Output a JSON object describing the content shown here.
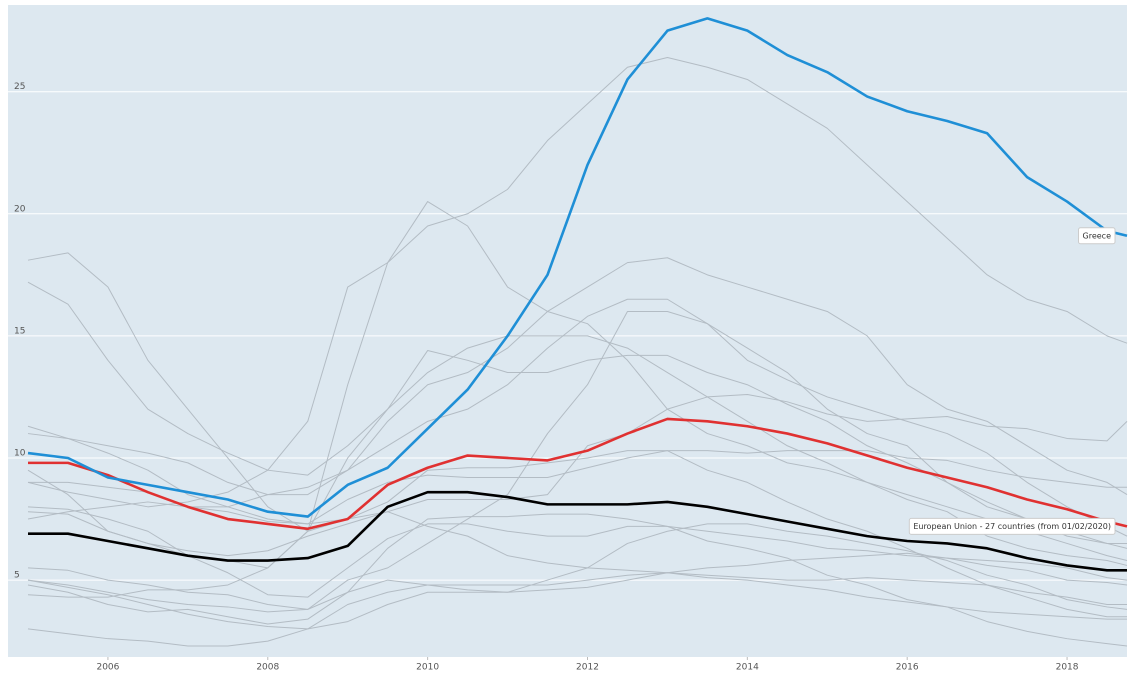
{
  "chart_data": {
    "type": "line",
    "x": [
      2005,
      2005.5,
      2006,
      2006.5,
      2007,
      2007.5,
      2008,
      2008.5,
      2009,
      2009.5,
      2010,
      2010.5,
      2011,
      2011.5,
      2012,
      2012.5,
      2013,
      2013.5,
      2014,
      2014.5,
      2015,
      2015.5,
      2016,
      2016.5,
      2017,
      2017.5,
      2018,
      2018.5,
      2018.75
    ],
    "xlim": [
      2005,
      2018.75
    ],
    "xticks": [
      2006,
      2008,
      2010,
      2012,
      2014,
      2016,
      2018
    ],
    "ylim": [
      1.85,
      28.55
    ],
    "yticks": [
      5,
      10,
      15,
      20,
      25
    ],
    "grid": true,
    "series": [
      {
        "color": "#b3bcc4",
        "values": [
          9.0,
          8.6,
          8.3,
          8.0,
          8.2,
          8.6,
          9.5,
          11.5,
          17.0,
          18.0,
          19.5,
          20.0,
          21.0,
          23.0,
          24.5,
          26.0,
          26.4,
          26.0,
          25.5,
          24.5,
          23.5,
          22.0,
          20.5,
          19.0,
          17.5,
          16.5,
          16.0,
          15.0,
          14.7
        ]
      },
      {
        "color": "#b3bcc4",
        "values": [
          9.5,
          8.5,
          7.0,
          6.5,
          6.0,
          5.8,
          5.5,
          7.0,
          13.0,
          18.0,
          20.5,
          19.5,
          17.0,
          16.0,
          15.5,
          14.0,
          12.0,
          11.0,
          10.5,
          9.8,
          9.5,
          9.0,
          8.5,
          8.0,
          7.5,
          7.0,
          6.5,
          6.0,
          5.8
        ]
      },
      {
        "color": "#b3bcc4",
        "values": [
          18.1,
          18.4,
          17.0,
          14.0,
          12.0,
          10.0,
          8.0,
          7.0,
          7.5,
          8.2,
          9.5,
          9.6,
          9.6,
          9.8,
          10.0,
          10.3,
          10.3,
          9.5,
          9.0,
          8.2,
          7.5,
          7.0,
          6.3,
          5.5,
          4.8,
          4.3,
          3.8,
          3.5,
          3.5
        ]
      },
      {
        "color": "#b3bcc4",
        "values": [
          17.2,
          16.3,
          14.0,
          12.0,
          11.0,
          10.2,
          9.5,
          9.3,
          10.5,
          12.0,
          14.4,
          14.0,
          13.5,
          13.5,
          14.0,
          14.2,
          14.2,
          13.5,
          13.0,
          12.2,
          11.5,
          10.5,
          9.8,
          9.0,
          8.2,
          7.5,
          6.8,
          6.5,
          6.3
        ]
      },
      {
        "color": "#b3bcc4",
        "values": [
          11.0,
          10.8,
          10.5,
          10.2,
          9.8,
          9.0,
          8.5,
          8.5,
          9.5,
          11.5,
          13.0,
          13.5,
          14.5,
          16.0,
          17.0,
          18.0,
          18.2,
          17.5,
          17.0,
          16.5,
          16.0,
          15.0,
          13.0,
          12.0,
          11.5,
          10.5,
          9.5,
          9.0,
          8.5
        ]
      },
      {
        "color": "#b3bcc4",
        "values": [
          7.5,
          7.8,
          8.0,
          8.2,
          8.0,
          8.0,
          8.5,
          8.8,
          9.5,
          10.5,
          11.5,
          12.0,
          13.0,
          14.5,
          15.8,
          16.5,
          16.5,
          15.5,
          14.0,
          13.2,
          12.5,
          12.0,
          11.5,
          11.0,
          10.2,
          9.0,
          8.0,
          7.2,
          6.8
        ]
      },
      {
        "color": "#b3bcc4",
        "values": [
          5.0,
          4.8,
          4.5,
          4.2,
          4.0,
          3.9,
          3.7,
          3.8,
          5.0,
          5.5,
          6.5,
          7.5,
          8.5,
          11.0,
          13.0,
          16.0,
          16.0,
          15.5,
          14.5,
          13.5,
          12.0,
          11.0,
          10.5,
          9.0,
          8.0,
          7.5,
          7.0,
          6.5,
          6.5
        ]
      },
      {
        "color": "#b3bcc4",
        "values": [
          4.4,
          4.3,
          4.3,
          4.6,
          4.6,
          4.8,
          5.5,
          7.0,
          10.0,
          12.0,
          13.5,
          14.5,
          15.0,
          15.0,
          15.0,
          14.5,
          13.5,
          12.5,
          11.5,
          10.5,
          9.8,
          9.0,
          8.3,
          7.8,
          6.8,
          6.3,
          6.0,
          5.8,
          5.6
        ]
      },
      {
        "color": "#b3bcc4",
        "values": [
          9.0,
          9.0,
          8.8,
          8.6,
          8.0,
          7.8,
          7.4,
          7.3,
          8.3,
          9.0,
          9.3,
          9.2,
          9.2,
          9.2,
          9.6,
          10.0,
          10.3,
          10.3,
          10.2,
          10.3,
          10.3,
          10.3,
          10.0,
          9.9,
          9.5,
          9.2,
          9.0,
          8.8,
          8.8
        ]
      },
      {
        "color": "#b3bcc4",
        "values": [
          7.8,
          7.7,
          7.0,
          6.5,
          6.2,
          6.0,
          6.2,
          6.8,
          7.3,
          7.8,
          8.3,
          8.3,
          8.3,
          8.5,
          10.5,
          11.0,
          12.0,
          12.5,
          12.6,
          12.3,
          11.8,
          11.5,
          11.6,
          11.7,
          11.3,
          11.2,
          10.8,
          10.7,
          11.5
        ]
      },
      {
        "color": "#b3bcc4",
        "values": [
          11.3,
          10.8,
          10.2,
          9.5,
          8.5,
          8.0,
          7.5,
          7.3,
          7.5,
          7.8,
          7.2,
          6.8,
          6.0,
          5.7,
          5.5,
          5.4,
          5.3,
          5.1,
          5.0,
          4.8,
          4.6,
          4.3,
          4.1,
          3.9,
          3.7,
          3.6,
          3.5,
          3.4,
          3.4
        ]
      },
      {
        "color": "#b3bcc4",
        "values": [
          5.0,
          4.7,
          4.4,
          4.0,
          3.6,
          3.3,
          3.1,
          3.0,
          3.3,
          4.0,
          4.5,
          4.5,
          4.5,
          5.0,
          5.5,
          6.5,
          7.0,
          7.3,
          7.3,
          7.0,
          6.8,
          6.5,
          6.2,
          5.8,
          5.2,
          4.8,
          4.2,
          3.9,
          3.8
        ]
      },
      {
        "color": "#b3bcc4",
        "values": [
          8.0,
          7.9,
          7.5,
          7.0,
          6.0,
          5.3,
          4.4,
          4.3,
          5.5,
          6.7,
          7.3,
          7.3,
          7.0,
          6.8,
          6.8,
          7.2,
          7.2,
          6.6,
          6.3,
          5.9,
          5.2,
          4.8,
          4.2,
          3.9,
          3.3,
          2.9,
          2.6,
          2.4,
          2.3
        ]
      },
      {
        "color": "#b3bcc4",
        "values": [
          5.5,
          5.4,
          5.0,
          4.8,
          4.5,
          4.4,
          4.0,
          3.8,
          4.5,
          5.0,
          4.8,
          4.6,
          4.5,
          4.6,
          4.7,
          5.0,
          5.3,
          5.5,
          5.6,
          5.8,
          5.9,
          6.0,
          6.1,
          5.9,
          5.6,
          5.4,
          5.0,
          4.9,
          4.8
        ]
      },
      {
        "color": "#b3bcc4",
        "values": [
          4.8,
          4.5,
          4.0,
          3.7,
          3.8,
          3.5,
          3.2,
          3.4,
          4.5,
          6.3,
          7.5,
          7.6,
          7.6,
          7.7,
          7.7,
          7.5,
          7.2,
          7.0,
          6.8,
          6.6,
          6.3,
          6.2,
          6.0,
          5.9,
          5.8,
          5.7,
          5.5,
          5.1,
          5.0
        ]
      },
      {
        "color": "#b3bcc4",
        "values": [
          3.0,
          2.8,
          2.6,
          2.5,
          2.3,
          2.3,
          2.5,
          3.0,
          4.0,
          4.5,
          4.8,
          4.8,
          4.8,
          4.8,
          5.0,
          5.2,
          5.3,
          5.2,
          5.1,
          5.0,
          5.0,
          5.1,
          5.0,
          4.9,
          4.8,
          4.5,
          4.3,
          4.0,
          4.0
        ]
      },
      {
        "color": "#000000",
        "values": [
          6.9,
          6.9,
          6.6,
          6.3,
          6.0,
          5.8,
          5.8,
          5.9,
          6.4,
          8.0,
          8.6,
          8.6,
          8.4,
          8.1,
          8.1,
          8.1,
          8.2,
          8.0,
          7.7,
          7.4,
          7.1,
          6.8,
          6.6,
          6.5,
          6.3,
          5.9,
          5.6,
          5.4,
          5.4
        ]
      },
      {
        "name": "European Union - 27 countries (from 01/02/2020)",
        "color": "#e03131",
        "values": [
          9.8,
          9.8,
          9.3,
          8.6,
          8.0,
          7.5,
          7.3,
          7.1,
          7.5,
          8.9,
          9.6,
          10.1,
          10.0,
          9.9,
          10.3,
          11.0,
          11.6,
          11.5,
          11.3,
          11.0,
          10.6,
          10.1,
          9.6,
          9.2,
          8.8,
          8.3,
          7.9,
          7.4,
          7.2
        ]
      },
      {
        "name": "Greece",
        "color": "#1f8fd6",
        "values": [
          10.2,
          10.0,
          9.2,
          8.9,
          8.6,
          8.3,
          7.8,
          7.6,
          8.9,
          9.6,
          11.2,
          12.8,
          15.0,
          17.5,
          22.0,
          25.5,
          27.5,
          28.0,
          27.5,
          26.5,
          25.8,
          24.8,
          24.2,
          23.8,
          23.3,
          21.5,
          20.5,
          19.3,
          19.1
        ]
      }
    ]
  }
}
